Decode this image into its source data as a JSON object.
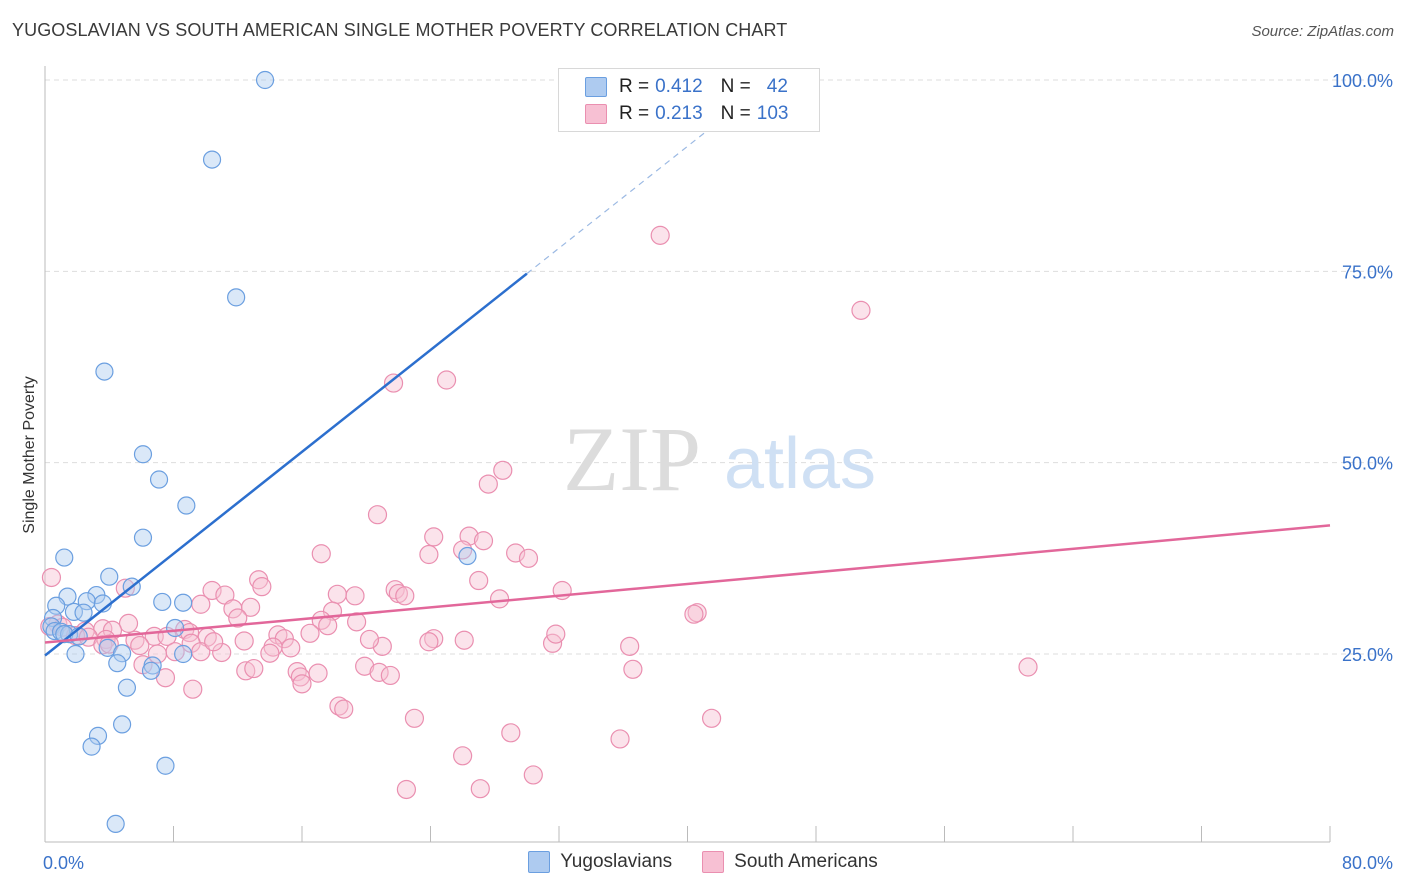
{
  "title": "YUGOSLAVIAN VS SOUTH AMERICAN SINGLE MOTHER POVERTY CORRELATION CHART",
  "source": "Source: ZipAtlas.com",
  "watermark": {
    "zip": "ZIP",
    "atlas": "atlas"
  },
  "legend": {
    "rows": [
      {
        "r_label": "R =",
        "r_value": "0.412",
        "n_label": "N =",
        "n_value": "42"
      },
      {
        "r_label": "R =",
        "r_value": "0.213",
        "n_label": "N =",
        "n_value": "103"
      }
    ]
  },
  "colors": {
    "blue_fill": "#aecbf0",
    "blue_stroke": "#6b9fe0",
    "blue_line": "#2c6fce",
    "pink_fill": "#f7c0d3",
    "pink_stroke": "#ea8fb0",
    "pink_line": "#e2679a",
    "grid": "#dddddd",
    "tick_label": "#3a72c9"
  },
  "chart_data": {
    "type": "scatter",
    "title": "YUGOSLAVIAN VS SOUTH AMERICAN SINGLE MOTHER POVERTY CORRELATION CHART",
    "xlabel": "",
    "ylabel": "Single Mother Poverty",
    "xlim": [
      0,
      80
    ],
    "ylim": [
      0,
      105
    ],
    "x_tick_labels": [
      "0.0%",
      "80.0%"
    ],
    "y_ticks": [
      25,
      50,
      75,
      100
    ],
    "y_tick_labels": [
      "25.0%",
      "50.0%",
      "75.0%",
      "100.0%"
    ],
    "grid": true,
    "legend_position": "bottom",
    "series": [
      {
        "name": "Yugoslavians",
        "points": [
          [
            13.7,
            100.0
          ],
          [
            10.4,
            89.6
          ],
          [
            11.9,
            71.6
          ],
          [
            3.7,
            61.9
          ],
          [
            6.1,
            51.1
          ],
          [
            7.1,
            47.8
          ],
          [
            8.8,
            44.4
          ],
          [
            6.1,
            40.2
          ],
          [
            1.2,
            37.6
          ],
          [
            26.3,
            37.8
          ],
          [
            4.0,
            35.1
          ],
          [
            5.4,
            33.8
          ],
          [
            3.2,
            32.7
          ],
          [
            1.4,
            32.5
          ],
          [
            2.6,
            31.9
          ],
          [
            7.3,
            31.8
          ],
          [
            8.6,
            31.7
          ],
          [
            3.6,
            31.6
          ],
          [
            0.7,
            31.3
          ],
          [
            1.8,
            30.5
          ],
          [
            2.4,
            30.4
          ],
          [
            0.5,
            29.7
          ],
          [
            0.4,
            28.6
          ],
          [
            8.1,
            28.4
          ],
          [
            0.6,
            28.0
          ],
          [
            1.0,
            27.9
          ],
          [
            1.5,
            27.6
          ],
          [
            1.2,
            27.6
          ],
          [
            2.1,
            27.3
          ],
          [
            3.9,
            25.8
          ],
          [
            1.9,
            25.0
          ],
          [
            4.8,
            25.1
          ],
          [
            8.6,
            25.0
          ],
          [
            4.5,
            23.8
          ],
          [
            6.7,
            23.5
          ],
          [
            6.6,
            22.8
          ],
          [
            5.1,
            20.6
          ],
          [
            4.8,
            15.8
          ],
          [
            3.3,
            14.3
          ],
          [
            2.9,
            12.9
          ],
          [
            7.5,
            10.4
          ],
          [
            4.4,
            2.8
          ]
        ]
      },
      {
        "name": "South Americans",
        "points": [
          [
            38.3,
            79.7
          ],
          [
            50.8,
            69.9
          ],
          [
            25.0,
            60.8
          ],
          [
            21.7,
            60.4
          ],
          [
            28.5,
            49.0
          ],
          [
            27.6,
            47.2
          ],
          [
            20.7,
            43.2
          ],
          [
            24.2,
            40.3
          ],
          [
            26.4,
            40.4
          ],
          [
            27.3,
            39.8
          ],
          [
            26.0,
            38.6
          ],
          [
            29.3,
            38.2
          ],
          [
            17.2,
            38.1
          ],
          [
            23.9,
            38.0
          ],
          [
            30.1,
            37.5
          ],
          [
            0.4,
            35.0
          ],
          [
            13.3,
            34.7
          ],
          [
            27.0,
            34.6
          ],
          [
            13.5,
            33.8
          ],
          [
            5.0,
            33.6
          ],
          [
            10.4,
            33.3
          ],
          [
            21.8,
            33.4
          ],
          [
            32.2,
            33.3
          ],
          [
            22.0,
            32.9
          ],
          [
            11.2,
            32.7
          ],
          [
            18.2,
            32.8
          ],
          [
            22.4,
            32.6
          ],
          [
            19.3,
            32.6
          ],
          [
            9.7,
            31.5
          ],
          [
            28.3,
            32.2
          ],
          [
            11.7,
            30.9
          ],
          [
            12.8,
            31.1
          ],
          [
            17.9,
            30.6
          ],
          [
            40.6,
            30.4
          ],
          [
            40.4,
            30.2
          ],
          [
            12.0,
            29.7
          ],
          [
            17.2,
            29.4
          ],
          [
            19.4,
            29.2
          ],
          [
            5.2,
            29.0
          ],
          [
            0.8,
            28.9
          ],
          [
            0.3,
            28.6
          ],
          [
            1.1,
            28.5
          ],
          [
            3.6,
            28.3
          ],
          [
            8.7,
            28.2
          ],
          [
            2.5,
            28.0
          ],
          [
            17.6,
            28.7
          ],
          [
            4.2,
            28.1
          ],
          [
            9.0,
            27.8
          ],
          [
            16.5,
            27.7
          ],
          [
            1.9,
            27.4
          ],
          [
            14.5,
            27.5
          ],
          [
            2.7,
            27.2
          ],
          [
            6.8,
            27.3
          ],
          [
            10.1,
            27.2
          ],
          [
            7.6,
            27.3
          ],
          [
            14.9,
            27.0
          ],
          [
            3.8,
            26.9
          ],
          [
            5.6,
            26.8
          ],
          [
            12.4,
            26.7
          ],
          [
            24.2,
            27.0
          ],
          [
            26.1,
            26.8
          ],
          [
            23.9,
            26.6
          ],
          [
            5.9,
            26.1
          ],
          [
            9.1,
            26.4
          ],
          [
            31.6,
            26.4
          ],
          [
            3.6,
            26.2
          ],
          [
            4.0,
            26.3
          ],
          [
            21.0,
            26.0
          ],
          [
            15.3,
            25.8
          ],
          [
            14.2,
            25.9
          ],
          [
            9.7,
            25.3
          ],
          [
            14.0,
            25.1
          ],
          [
            11.0,
            25.2
          ],
          [
            8.1,
            25.3
          ],
          [
            7.0,
            25.0
          ],
          [
            6.1,
            23.6
          ],
          [
            19.9,
            23.4
          ],
          [
            12.5,
            22.8
          ],
          [
            15.7,
            22.7
          ],
          [
            17.0,
            22.5
          ],
          [
            15.9,
            22.0
          ],
          [
            36.6,
            23.0
          ],
          [
            61.2,
            23.3
          ],
          [
            20.8,
            22.6
          ],
          [
            21.5,
            22.2
          ],
          [
            7.5,
            21.9
          ],
          [
            16.0,
            21.1
          ],
          [
            9.2,
            20.4
          ],
          [
            18.3,
            18.2
          ],
          [
            18.6,
            17.8
          ],
          [
            23.0,
            16.6
          ],
          [
            41.5,
            16.6
          ],
          [
            29.0,
            14.7
          ],
          [
            35.8,
            13.9
          ],
          [
            26.0,
            11.7
          ],
          [
            30.4,
            9.2
          ],
          [
            22.5,
            7.3
          ],
          [
            27.1,
            7.4
          ],
          [
            31.8,
            27.6
          ],
          [
            36.4,
            26.0
          ],
          [
            20.2,
            26.9
          ],
          [
            10.5,
            26.6
          ],
          [
            13.0,
            23.1
          ]
        ]
      }
    ],
    "trend_lines": [
      {
        "series": "Yugoslavians",
        "x": [
          0,
          30
        ],
        "y": [
          24.8,
          74.7
        ],
        "dashed_extension_to_x": 44
      },
      {
        "series": "South Americans",
        "x": [
          0,
          80
        ],
        "y": [
          26.5,
          41.8
        ]
      }
    ]
  },
  "bottom_legend": [
    {
      "label": "Yugoslavians"
    },
    {
      "label": "South Americans"
    }
  ]
}
